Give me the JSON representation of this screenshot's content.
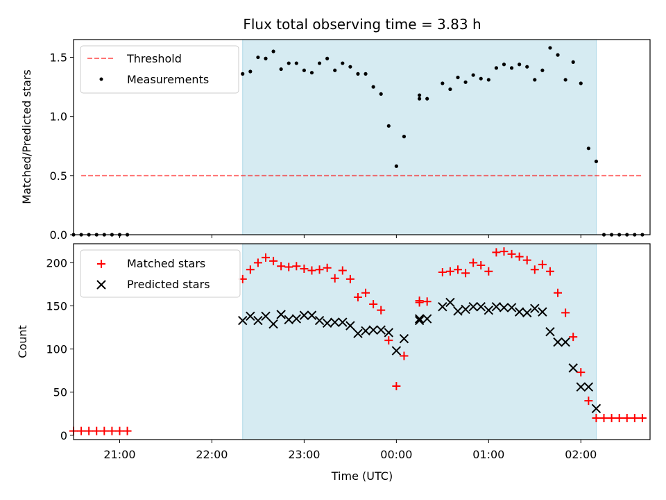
{
  "title": "Flux total observing time = 3.83 h",
  "colors": {
    "shade": "#add8e6",
    "threshold": "#ff0000",
    "matched": "#ff0000",
    "predicted": "#000000",
    "measurement": "#000000"
  },
  "chart_data": [
    {
      "type": "scatter",
      "panel": "top",
      "ylabel": "Matched/Predicted stars",
      "x_range": [
        "20:30",
        "02:45"
      ],
      "ylim": [
        0,
        1.65
      ],
      "yticks": [
        "0.0",
        "0.5",
        "1.0",
        "1.5"
      ],
      "shaded_interval": [
        "22:20",
        "02:10"
      ],
      "legend": {
        "placement": "top-left",
        "entries": [
          "Threshold",
          "Measurements"
        ]
      },
      "threshold": {
        "name": "Threshold",
        "value": 0.5,
        "x": [
          "20:35",
          "02:40"
        ]
      },
      "series": [
        {
          "name": "Measurements",
          "x": [
            "20:30",
            "20:35",
            "20:40",
            "20:45",
            "20:50",
            "20:55",
            "21:00",
            "21:05",
            "22:20",
            "22:25",
            "22:30",
            "22:35",
            "22:40",
            "22:45",
            "22:50",
            "22:55",
            "23:00",
            "23:05",
            "23:10",
            "23:15",
            "23:20",
            "23:25",
            "23:30",
            "23:35",
            "23:40",
            "23:45",
            "23:50",
            "23:55",
            "00:00",
            "00:05",
            "00:15",
            "00:15",
            "00:20",
            "00:30",
            "00:35",
            "00:40",
            "00:45",
            "00:50",
            "00:55",
            "01:00",
            "01:05",
            "01:10",
            "01:15",
            "01:20",
            "01:25",
            "01:30",
            "01:35",
            "01:40",
            "01:45",
            "01:50",
            "01:55",
            "02:00",
            "02:05",
            "02:10",
            "02:15",
            "02:20",
            "02:25",
            "02:30",
            "02:35",
            "02:40"
          ],
          "y": [
            0,
            0,
            0,
            0,
            0,
            0,
            0,
            0,
            1.36,
            1.38,
            1.5,
            1.49,
            1.55,
            1.4,
            1.45,
            1.45,
            1.39,
            1.37,
            1.45,
            1.49,
            1.39,
            1.45,
            1.42,
            1.36,
            1.36,
            1.25,
            1.19,
            0.92,
            0.58,
            0.83,
            1.18,
            1.15,
            1.15,
            1.28,
            1.23,
            1.33,
            1.29,
            1.35,
            1.32,
            1.31,
            1.41,
            1.44,
            1.41,
            1.44,
            1.42,
            1.31,
            1.39,
            1.58,
            1.52,
            1.31,
            1.46,
            1.28,
            0.73,
            0.62,
            0,
            0,
            0,
            0,
            0,
            0
          ]
        }
      ]
    },
    {
      "type": "scatter",
      "panel": "bottom",
      "xlabel": "Time (UTC)",
      "ylabel": "Count",
      "x_range": [
        "20:30",
        "02:45"
      ],
      "ylim": [
        -5,
        222
      ],
      "yticks": [
        "0",
        "50",
        "100",
        "150",
        "200"
      ],
      "xticks": [
        "21:00",
        "22:00",
        "23:00",
        "00:00",
        "01:00",
        "02:00"
      ],
      "shaded_interval": [
        "22:20",
        "02:10"
      ],
      "legend": {
        "placement": "top-left",
        "entries": [
          "Matched stars",
          "Predicted stars"
        ]
      },
      "series": [
        {
          "name": "Matched stars",
          "x": [
            "20:30",
            "20:35",
            "20:40",
            "20:45",
            "20:50",
            "20:55",
            "21:00",
            "21:05",
            "22:20",
            "22:25",
            "22:30",
            "22:35",
            "22:40",
            "22:45",
            "22:50",
            "22:55",
            "23:00",
            "23:05",
            "23:10",
            "23:15",
            "23:20",
            "23:25",
            "23:30",
            "23:35",
            "23:40",
            "23:45",
            "23:50",
            "23:55",
            "00:00",
            "00:05",
            "00:15",
            "00:15",
            "00:20",
            "00:30",
            "00:35",
            "00:40",
            "00:45",
            "00:50",
            "00:55",
            "01:00",
            "01:05",
            "01:10",
            "01:15",
            "01:20",
            "01:25",
            "01:30",
            "01:35",
            "01:40",
            "01:45",
            "01:50",
            "01:55",
            "02:00",
            "02:05",
            "02:10",
            "02:15",
            "02:20",
            "02:25",
            "02:30",
            "02:35",
            "02:40"
          ],
          "y": [
            5,
            5,
            5,
            5,
            5,
            5,
            5,
            5,
            181,
            192,
            200,
            206,
            202,
            196,
            195,
            196,
            193,
            191,
            192,
            194,
            182,
            191,
            181,
            160,
            165,
            152,
            145,
            110,
            57,
            92,
            156,
            154,
            155,
            189,
            190,
            192,
            188,
            200,
            197,
            190,
            212,
            213,
            210,
            207,
            203,
            192,
            198,
            190,
            165,
            142,
            114,
            73,
            40,
            20,
            20,
            20,
            20,
            20,
            20,
            20
          ]
        },
        {
          "name": "Predicted stars",
          "x": [
            "22:20",
            "22:25",
            "22:30",
            "22:35",
            "22:40",
            "22:45",
            "22:50",
            "22:55",
            "23:00",
            "23:05",
            "23:10",
            "23:15",
            "23:20",
            "23:25",
            "23:30",
            "23:35",
            "23:40",
            "23:45",
            "23:50",
            "23:55",
            "00:00",
            "00:05",
            "00:15",
            "00:15",
            "00:20",
            "00:30",
            "00:35",
            "00:40",
            "00:45",
            "00:50",
            "00:55",
            "01:00",
            "01:05",
            "01:10",
            "01:15",
            "01:20",
            "01:25",
            "01:30",
            "01:35",
            "01:40",
            "01:45",
            "01:50",
            "01:55",
            "02:00",
            "02:05",
            "02:10"
          ],
          "y": [
            133,
            138,
            133,
            138,
            129,
            140,
            134,
            135,
            139,
            139,
            133,
            130,
            131,
            131,
            127,
            118,
            121,
            122,
            122,
            119,
            98,
            112,
            135,
            133,
            135,
            149,
            154,
            144,
            146,
            149,
            149,
            145,
            149,
            148,
            148,
            143,
            142,
            147,
            143,
            120,
            108,
            108,
            78,
            56,
            56,
            31
          ]
        }
      ]
    }
  ]
}
